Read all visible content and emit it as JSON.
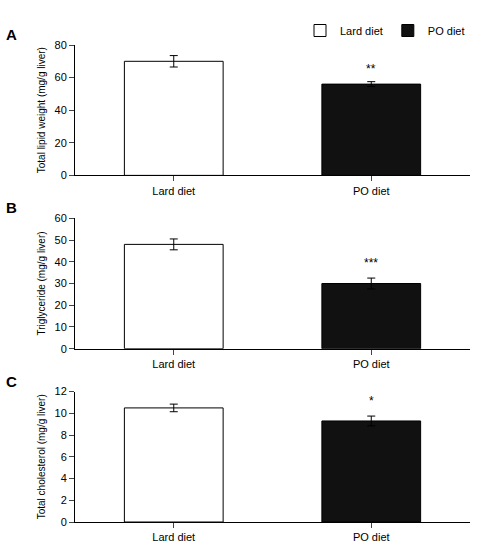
{
  "chart_data": [
    {
      "type": "bar",
      "title": "A",
      "ylabel": "Total lipid weight (mg/g liver)",
      "categories": [
        "Lard diet",
        "PO diet"
      ],
      "series": [
        {
          "name": "Lard diet",
          "color": "white",
          "values": [
            70,
            null
          ],
          "errors": [
            3.5,
            null
          ]
        },
        {
          "name": "PO diet",
          "color": "#111111",
          "values": [
            null,
            56
          ],
          "errors": [
            null,
            1.5
          ]
        }
      ],
      "ylim": [
        0,
        80
      ],
      "yticks": [
        0,
        20,
        40,
        60,
        80
      ],
      "grid": false,
      "legend": "upper right",
      "annotations": [
        {
          "text": "**",
          "x": "PO diet",
          "y": 60
        }
      ]
    },
    {
      "type": "bar",
      "title": "B",
      "ylabel": "Triglyceride (mg/g liver)",
      "categories": [
        "Lard diet",
        "PO diet"
      ],
      "series": [
        {
          "name": "Lard diet",
          "color": "white",
          "values": [
            48,
            null
          ],
          "errors": [
            2.5,
            null
          ]
        },
        {
          "name": "PO diet",
          "color": "#111111",
          "values": [
            null,
            30
          ],
          "errors": [
            null,
            2.5
          ]
        }
      ],
      "ylim": [
        0,
        60
      ],
      "yticks": [
        0,
        10,
        20,
        30,
        40,
        50,
        60
      ],
      "grid": false,
      "annotations": [
        {
          "text": "***",
          "x": "PO diet",
          "y": 35.5
        }
      ]
    },
    {
      "type": "bar",
      "title": "C",
      "ylabel": "Total cholesterol (mg/g liver)",
      "categories": [
        "Lard diet",
        "PO diet"
      ],
      "series": [
        {
          "name": "Lard diet",
          "color": "white",
          "values": [
            10.5,
            null
          ],
          "errors": [
            0.35,
            null
          ]
        },
        {
          "name": "PO diet",
          "color": "#111111",
          "values": [
            null,
            9.3
          ],
          "errors": [
            null,
            0.45
          ]
        }
      ],
      "ylim": [
        0,
        12
      ],
      "yticks": [
        0,
        2,
        4,
        6,
        8,
        10,
        12
      ],
      "grid": false,
      "annotations": [
        {
          "text": "*",
          "x": "PO diet",
          "y": 10.3
        }
      ]
    }
  ]
}
